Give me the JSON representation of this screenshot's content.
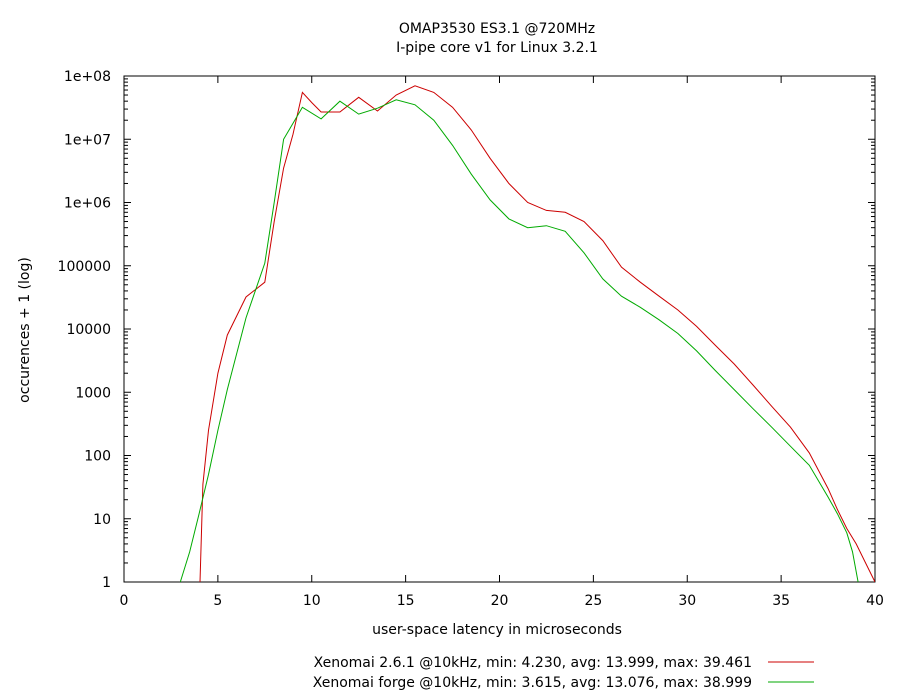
{
  "chart_data": {
    "type": "line",
    "title": "OMAP3530 ES3.1 @720MHz",
    "subtitle": "I-pipe core v1 for Linux 3.2.1",
    "xlabel": "user-space latency in microseconds",
    "ylabel": "occurences + 1 (log)",
    "xlim": [
      0,
      40
    ],
    "ylim": [
      1,
      100000000
    ],
    "yscale": "log",
    "grid": false,
    "legend_position": "bottom-center",
    "x_ticks": [
      0,
      5,
      10,
      15,
      20,
      25,
      30,
      35,
      40
    ],
    "x_tick_labels": [
      "0",
      "5",
      "10",
      "15",
      "20",
      "25",
      "30",
      "35",
      "40"
    ],
    "y_ticks": [
      1,
      10,
      100,
      1000,
      10000,
      100000,
      1000000,
      10000000,
      100000000
    ],
    "y_tick_labels": [
      "1",
      "10",
      "100",
      "1000",
      "10000",
      "100000",
      "1e+06",
      "1e+07",
      "1e+08"
    ],
    "series": [
      {
        "name": "Xenomai 2.6.1 @10kHz, min: 4.230, avg: 13.999, max: 39.461",
        "color": "#cc0000",
        "points": [
          [
            4.05,
            1
          ],
          [
            4.2,
            35
          ],
          [
            4.5,
            250
          ],
          [
            5.0,
            2000
          ],
          [
            5.5,
            8000
          ],
          [
            6.5,
            32000
          ],
          [
            7.5,
            55000
          ],
          [
            8.0,
            500000
          ],
          [
            8.5,
            3500000
          ],
          [
            9.0,
            12000000
          ],
          [
            9.5,
            55000000
          ],
          [
            10.0,
            38000000
          ],
          [
            10.5,
            27000000
          ],
          [
            11.5,
            27000000
          ],
          [
            12.5,
            46000000
          ],
          [
            13.5,
            28000000
          ],
          [
            14.5,
            50000000
          ],
          [
            15.5,
            70000000
          ],
          [
            16.5,
            55000000
          ],
          [
            17.5,
            32000000
          ],
          [
            18.5,
            14000000
          ],
          [
            19.5,
            5000000
          ],
          [
            20.5,
            2000000
          ],
          [
            21.5,
            1000000
          ],
          [
            22.5,
            750000
          ],
          [
            23.5,
            700000
          ],
          [
            24.5,
            500000
          ],
          [
            25.5,
            250000
          ],
          [
            26.5,
            95000
          ],
          [
            27.5,
            55000
          ],
          [
            28.5,
            33000
          ],
          [
            29.5,
            20000
          ],
          [
            30.5,
            11000
          ],
          [
            31.5,
            5500
          ],
          [
            32.5,
            2800
          ],
          [
            33.5,
            1300
          ],
          [
            34.5,
            600
          ],
          [
            35.5,
            280
          ],
          [
            36.5,
            110
          ],
          [
            37.5,
            30
          ],
          [
            38.0,
            14
          ],
          [
            38.5,
            7
          ],
          [
            39.0,
            4
          ],
          [
            39.5,
            2
          ],
          [
            40.0,
            1
          ]
        ]
      },
      {
        "name": "Xenomai forge @10kHz, min: 3.615, avg: 13.076, max: 38.999",
        "color": "#00aa00",
        "points": [
          [
            3.0,
            1
          ],
          [
            3.5,
            3
          ],
          [
            4.0,
            12
          ],
          [
            4.5,
            50
          ],
          [
            5.0,
            250
          ],
          [
            5.5,
            1100
          ],
          [
            6.5,
            15000
          ],
          [
            7.5,
            110000
          ],
          [
            8.0,
            1000000
          ],
          [
            8.5,
            10000000
          ],
          [
            9.5,
            32000000
          ],
          [
            10.5,
            21000000
          ],
          [
            11.5,
            40000000
          ],
          [
            12.5,
            25000000
          ],
          [
            13.5,
            31000000
          ],
          [
            14.5,
            42000000
          ],
          [
            15.5,
            35000000
          ],
          [
            16.5,
            20000000
          ],
          [
            17.5,
            8000000
          ],
          [
            18.5,
            2800000
          ],
          [
            19.5,
            1100000
          ],
          [
            20.5,
            550000
          ],
          [
            21.5,
            400000
          ],
          [
            22.5,
            430000
          ],
          [
            23.5,
            350000
          ],
          [
            24.5,
            160000
          ],
          [
            25.5,
            62000
          ],
          [
            26.5,
            33000
          ],
          [
            27.5,
            22000
          ],
          [
            28.5,
            14000
          ],
          [
            29.5,
            8500
          ],
          [
            30.5,
            4500
          ],
          [
            31.5,
            2200
          ],
          [
            32.5,
            1100
          ],
          [
            33.5,
            550
          ],
          [
            34.5,
            280
          ],
          [
            35.5,
            140
          ],
          [
            36.5,
            70
          ],
          [
            37.5,
            22
          ],
          [
            38.0,
            12
          ],
          [
            38.5,
            6
          ],
          [
            38.8,
            3
          ],
          [
            39.1,
            1
          ]
        ]
      }
    ]
  }
}
